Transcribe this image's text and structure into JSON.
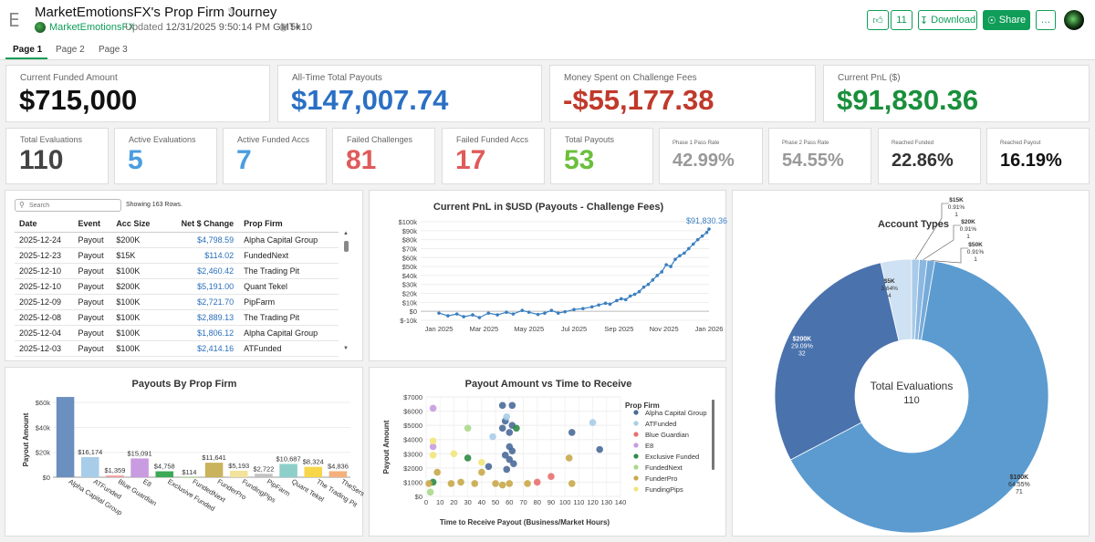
{
  "header": {
    "app_icon": "E",
    "title": "MarketEmotionsFX's Prop Firm Journey",
    "author": "MarketEmotionsFX",
    "updated_label": "Updated",
    "updated_value": "12/31/2025 9:50:14 PM GMT+10",
    "views": "5k",
    "like_count": "11",
    "download_label": "Download",
    "share_label": "Share",
    "more_label": "…"
  },
  "tabs": [
    {
      "label": "Page 1",
      "active": true
    },
    {
      "label": "Page 2",
      "active": false
    },
    {
      "label": "Page 3",
      "active": false
    }
  ],
  "kpis": {
    "funded_amount": {
      "label": "Current Funded Amount",
      "value": "$715,000",
      "color": "#111111"
    },
    "total_payouts": {
      "label": "All-Time Total Payouts",
      "value": "$147,007.74",
      "color": "#2a6fc4"
    },
    "challenge_fees": {
      "label": "Money Spent on Challenge Fees",
      "value": "-$55,177.38",
      "color": "#c0392b"
    },
    "current_pnl": {
      "label": "Current PnL ($)",
      "value": "$91,830.36",
      "color": "#1a8f3c"
    },
    "total_evaluations": {
      "label": "Total Evaluations",
      "value": "110",
      "color": "#444444"
    },
    "active_evaluations": {
      "label": "Active Evaluations",
      "value": "5",
      "color": "#4a9de0"
    },
    "active_funded": {
      "label": "Active Funded Accs",
      "value": "7",
      "color": "#4a9de0"
    },
    "failed_challenges": {
      "label": "Failed Challenges",
      "value": "81",
      "color": "#e05a5a"
    },
    "failed_funded": {
      "label": "Failed Funded Accs",
      "value": "17",
      "color": "#e05a5a"
    },
    "total_payouts_count": {
      "label": "Total Payouts",
      "value": "53",
      "color": "#6cbf3c"
    },
    "phase1_pass": {
      "label": "Phase 1 Pass Rate",
      "value": "42.99%",
      "color": "#999999"
    },
    "phase2_pass": {
      "label": "Phase 2 Pass Rate",
      "value": "54.55%",
      "color": "#999999"
    },
    "reached_funded": {
      "label": "Reached Funded",
      "value": "22.86%",
      "color": "#333333"
    },
    "reached_payout": {
      "label": "Reached Payout",
      "value": "16.19%",
      "color": "#111111"
    }
  },
  "table": {
    "search_placeholder": "Search",
    "showing": "Showing 163 Rows.",
    "columns": [
      "Date",
      "Event",
      "Acc Size",
      "Net $ Change",
      "Prop Firm"
    ],
    "rows": [
      [
        "2025-12-24",
        "Payout",
        "$200K",
        "$4,798.59",
        "Alpha Capital Group"
      ],
      [
        "2025-12-23",
        "Payout",
        "$15K",
        "$114.02",
        "FundedNext"
      ],
      [
        "2025-12-10",
        "Payout",
        "$100K",
        "$2,460.42",
        "The Trading Pit"
      ],
      [
        "2025-12-10",
        "Payout",
        "$200K",
        "$5,191.00",
        "Quant Tekel"
      ],
      [
        "2025-12-09",
        "Payout",
        "$100K",
        "$2,721.70",
        "PipFarm"
      ],
      [
        "2025-12-08",
        "Payout",
        "$100K",
        "$2,889.13",
        "The Trading Pit"
      ],
      [
        "2025-12-04",
        "Payout",
        "$100K",
        "$1,806.12",
        "Alpha Capital Group"
      ],
      [
        "2025-12-03",
        "Payout",
        "$100K",
        "$2,414.16",
        "ATFunded"
      ]
    ]
  },
  "chart_data": [
    {
      "id": "pnl",
      "type": "line",
      "title": "Current PnL in $USD (Payouts - Challenge Fees)",
      "last_label": "$91,830.36",
      "color": "#3a7fc0",
      "x_ticks": [
        "Jan 2025",
        "Mar 2025",
        "May 2025",
        "Jul 2025",
        "Sep 2025",
        "Nov 2025",
        "Jan 2026"
      ],
      "y_ticks": [
        "$-10k",
        "$0",
        "$10k",
        "$20k",
        "$30k",
        "$40k",
        "$50k",
        "$60k",
        "$70k",
        "$80k",
        "$90k",
        "$100k"
      ],
      "ylim": [
        -10000,
        100000
      ],
      "x": [
        0,
        0.4,
        0.8,
        1.1,
        1.5,
        1.8,
        2.2,
        2.6,
        3.0,
        3.3,
        3.7,
        4.0,
        4.4,
        4.7,
        5.0,
        5.3,
        5.6,
        6.0,
        6.4,
        6.8,
        7.1,
        7.4,
        7.6,
        7.9,
        8.1,
        8.3,
        8.5,
        8.7,
        8.9,
        9.1,
        9.3,
        9.5,
        9.7,
        9.9,
        10.1,
        10.3,
        10.5,
        10.7,
        10.9,
        11.1,
        11.3,
        11.5,
        11.7,
        11.9,
        12.0
      ],
      "y": [
        -2000,
        -5000,
        -3000,
        -6000,
        -4000,
        -7000,
        -2000,
        -4000,
        -1000,
        -3000,
        1000,
        -1000,
        -3500,
        -2000,
        1000,
        -2000,
        -500,
        2000,
        3000,
        5000,
        7000,
        9000,
        8000,
        12000,
        14000,
        13000,
        17000,
        19000,
        22000,
        27000,
        30000,
        35000,
        40000,
        44000,
        52000,
        50000,
        58000,
        62000,
        65000,
        70000,
        75000,
        80000,
        84000,
        88000,
        91830
      ]
    },
    {
      "id": "payouts_by_firm",
      "type": "bar",
      "title": "Payouts By Prop Firm",
      "ylabel": "Payout Amount",
      "y_ticks": [
        "$0",
        "$20k",
        "$40k",
        "$60k"
      ],
      "ylim": [
        0,
        66000
      ],
      "categories": [
        "Alpha Capital Group",
        "ATFunded",
        "Blue Guardian",
        "E8",
        "Exclusive Funded",
        "FundedNext",
        "FunderPro",
        "FundingPips",
        "PipFarm",
        "Quant Tekel",
        "The Trading Pit",
        "TheSers"
      ],
      "values": [
        64500,
        16174,
        1359,
        15091,
        4758,
        114,
        11641,
        5193,
        2722,
        10687,
        8324,
        4836
      ],
      "labels": [
        "",
        "$16,174",
        "$1,359",
        "$15,091",
        "$4,758",
        "$114",
        "$11,641",
        "$5,193",
        "$2,722",
        "$10,687",
        "$8,324",
        "$4,836"
      ],
      "colors": [
        "#6b8fbf",
        "#a8cde8",
        "#f29b9b",
        "#c99be0",
        "#3caa55",
        "#b5d99b",
        "#c9b35c",
        "#f2e29b",
        "#c2c2c2",
        "#8fcfc9",
        "#f7d64a",
        "#f5b07a"
      ]
    },
    {
      "id": "payout_vs_time",
      "type": "scatter",
      "title": "Payout Amount vs Time to Receive",
      "xlabel": "Time to Receive Payout (Business/Market Hours)",
      "ylabel": "Payout Amount",
      "legend_title": "Prop Firm",
      "x_ticks": [
        "0",
        "10",
        "20",
        "30",
        "40",
        "50",
        "60",
        "70",
        "80",
        "90",
        "100",
        "110",
        "120",
        "130",
        "140"
      ],
      "y_ticks": [
        "$0",
        "$1000",
        "$2000",
        "$3000",
        "$4000",
        "$5000",
        "$6000",
        "$7000"
      ],
      "xlim": [
        0,
        140
      ],
      "ylim": [
        0,
        7000
      ],
      "legend": [
        {
          "name": "Alpha Capital Group",
          "color": "#4a6a99"
        },
        {
          "name": "ATFunded",
          "color": "#a8cde8"
        },
        {
          "name": "Blue Guardian",
          "color": "#e8706f"
        },
        {
          "name": "E8",
          "color": "#c99be0"
        },
        {
          "name": "Exclusive Funded",
          "color": "#2f8a46"
        },
        {
          "name": "FundedNext",
          "color": "#a8d98a"
        },
        {
          "name": "FunderPro",
          "color": "#c9a94a"
        },
        {
          "name": "FundingPips",
          "color": "#f2e57a"
        }
      ],
      "points": [
        {
          "x": 55,
          "y": 6400,
          "c": 0
        },
        {
          "x": 62,
          "y": 6400,
          "c": 0
        },
        {
          "x": 57,
          "y": 5300,
          "c": 0
        },
        {
          "x": 62,
          "y": 5000,
          "c": 0
        },
        {
          "x": 55,
          "y": 4800,
          "c": 0
        },
        {
          "x": 60,
          "y": 4500,
          "c": 0
        },
        {
          "x": 60,
          "y": 3500,
          "c": 0
        },
        {
          "x": 62,
          "y": 3200,
          "c": 0
        },
        {
          "x": 57,
          "y": 2900,
          "c": 0
        },
        {
          "x": 60,
          "y": 2600,
          "c": 0
        },
        {
          "x": 63,
          "y": 2300,
          "c": 0
        },
        {
          "x": 58,
          "y": 1900,
          "c": 0
        },
        {
          "x": 105,
          "y": 4500,
          "c": 0
        },
        {
          "x": 125,
          "y": 3300,
          "c": 0
        },
        {
          "x": 45,
          "y": 2100,
          "c": 0
        },
        {
          "x": 120,
          "y": 5200,
          "c": 1
        },
        {
          "x": 48,
          "y": 4200,
          "c": 1
        },
        {
          "x": 58,
          "y": 5600,
          "c": 1
        },
        {
          "x": 90,
          "y": 1400,
          "c": 2
        },
        {
          "x": 80,
          "y": 1000,
          "c": 2
        },
        {
          "x": 5,
          "y": 6200,
          "c": 3
        },
        {
          "x": 5,
          "y": 3500,
          "c": 3
        },
        {
          "x": 65,
          "y": 4800,
          "c": 4
        },
        {
          "x": 30,
          "y": 2700,
          "c": 4
        },
        {
          "x": 5,
          "y": 1000,
          "c": 4
        },
        {
          "x": 3,
          "y": 300,
          "c": 5
        },
        {
          "x": 30,
          "y": 4800,
          "c": 5
        },
        {
          "x": 35,
          "y": 900,
          "c": 6
        },
        {
          "x": 50,
          "y": 900,
          "c": 6
        },
        {
          "x": 55,
          "y": 800,
          "c": 6
        },
        {
          "x": 18,
          "y": 900,
          "c": 6
        },
        {
          "x": 73,
          "y": 900,
          "c": 6
        },
        {
          "x": 105,
          "y": 900,
          "c": 6
        },
        {
          "x": 103,
          "y": 2700,
          "c": 6
        },
        {
          "x": 2,
          "y": 900,
          "c": 6
        },
        {
          "x": 40,
          "y": 1700,
          "c": 6
        },
        {
          "x": 60,
          "y": 900,
          "c": 6
        },
        {
          "x": 8,
          "y": 1700,
          "c": 6
        },
        {
          "x": 25,
          "y": 1000,
          "c": 6
        },
        {
          "x": 5,
          "y": 3900,
          "c": 7
        },
        {
          "x": 20,
          "y": 3000,
          "c": 7
        },
        {
          "x": 5,
          "y": 2900,
          "c": 7
        },
        {
          "x": 40,
          "y": 2400,
          "c": 7
        }
      ]
    },
    {
      "id": "account_types",
      "type": "pie",
      "title": "Account Types",
      "center_label": "Total Evaluations",
      "center_value": "110",
      "slices": [
        {
          "name": "$100K",
          "pct": "64.55%",
          "count": 71,
          "color": "#5b9bd0"
        },
        {
          "name": "$200K",
          "pct": "29.09%",
          "count": 32,
          "color": "#4a72ad"
        },
        {
          "name": "$5K",
          "pct": "3.64%",
          "count": 4,
          "color": "#cfe2f3"
        },
        {
          "name": "$15K",
          "pct": "0.91%",
          "count": 1,
          "color": "#a9cbe9"
        },
        {
          "name": "$20K",
          "pct": "0.91%",
          "count": 1,
          "color": "#8bb8e1"
        },
        {
          "name": "$50K",
          "pct": "0.91%",
          "count": 1,
          "color": "#76aad9"
        }
      ]
    }
  ]
}
